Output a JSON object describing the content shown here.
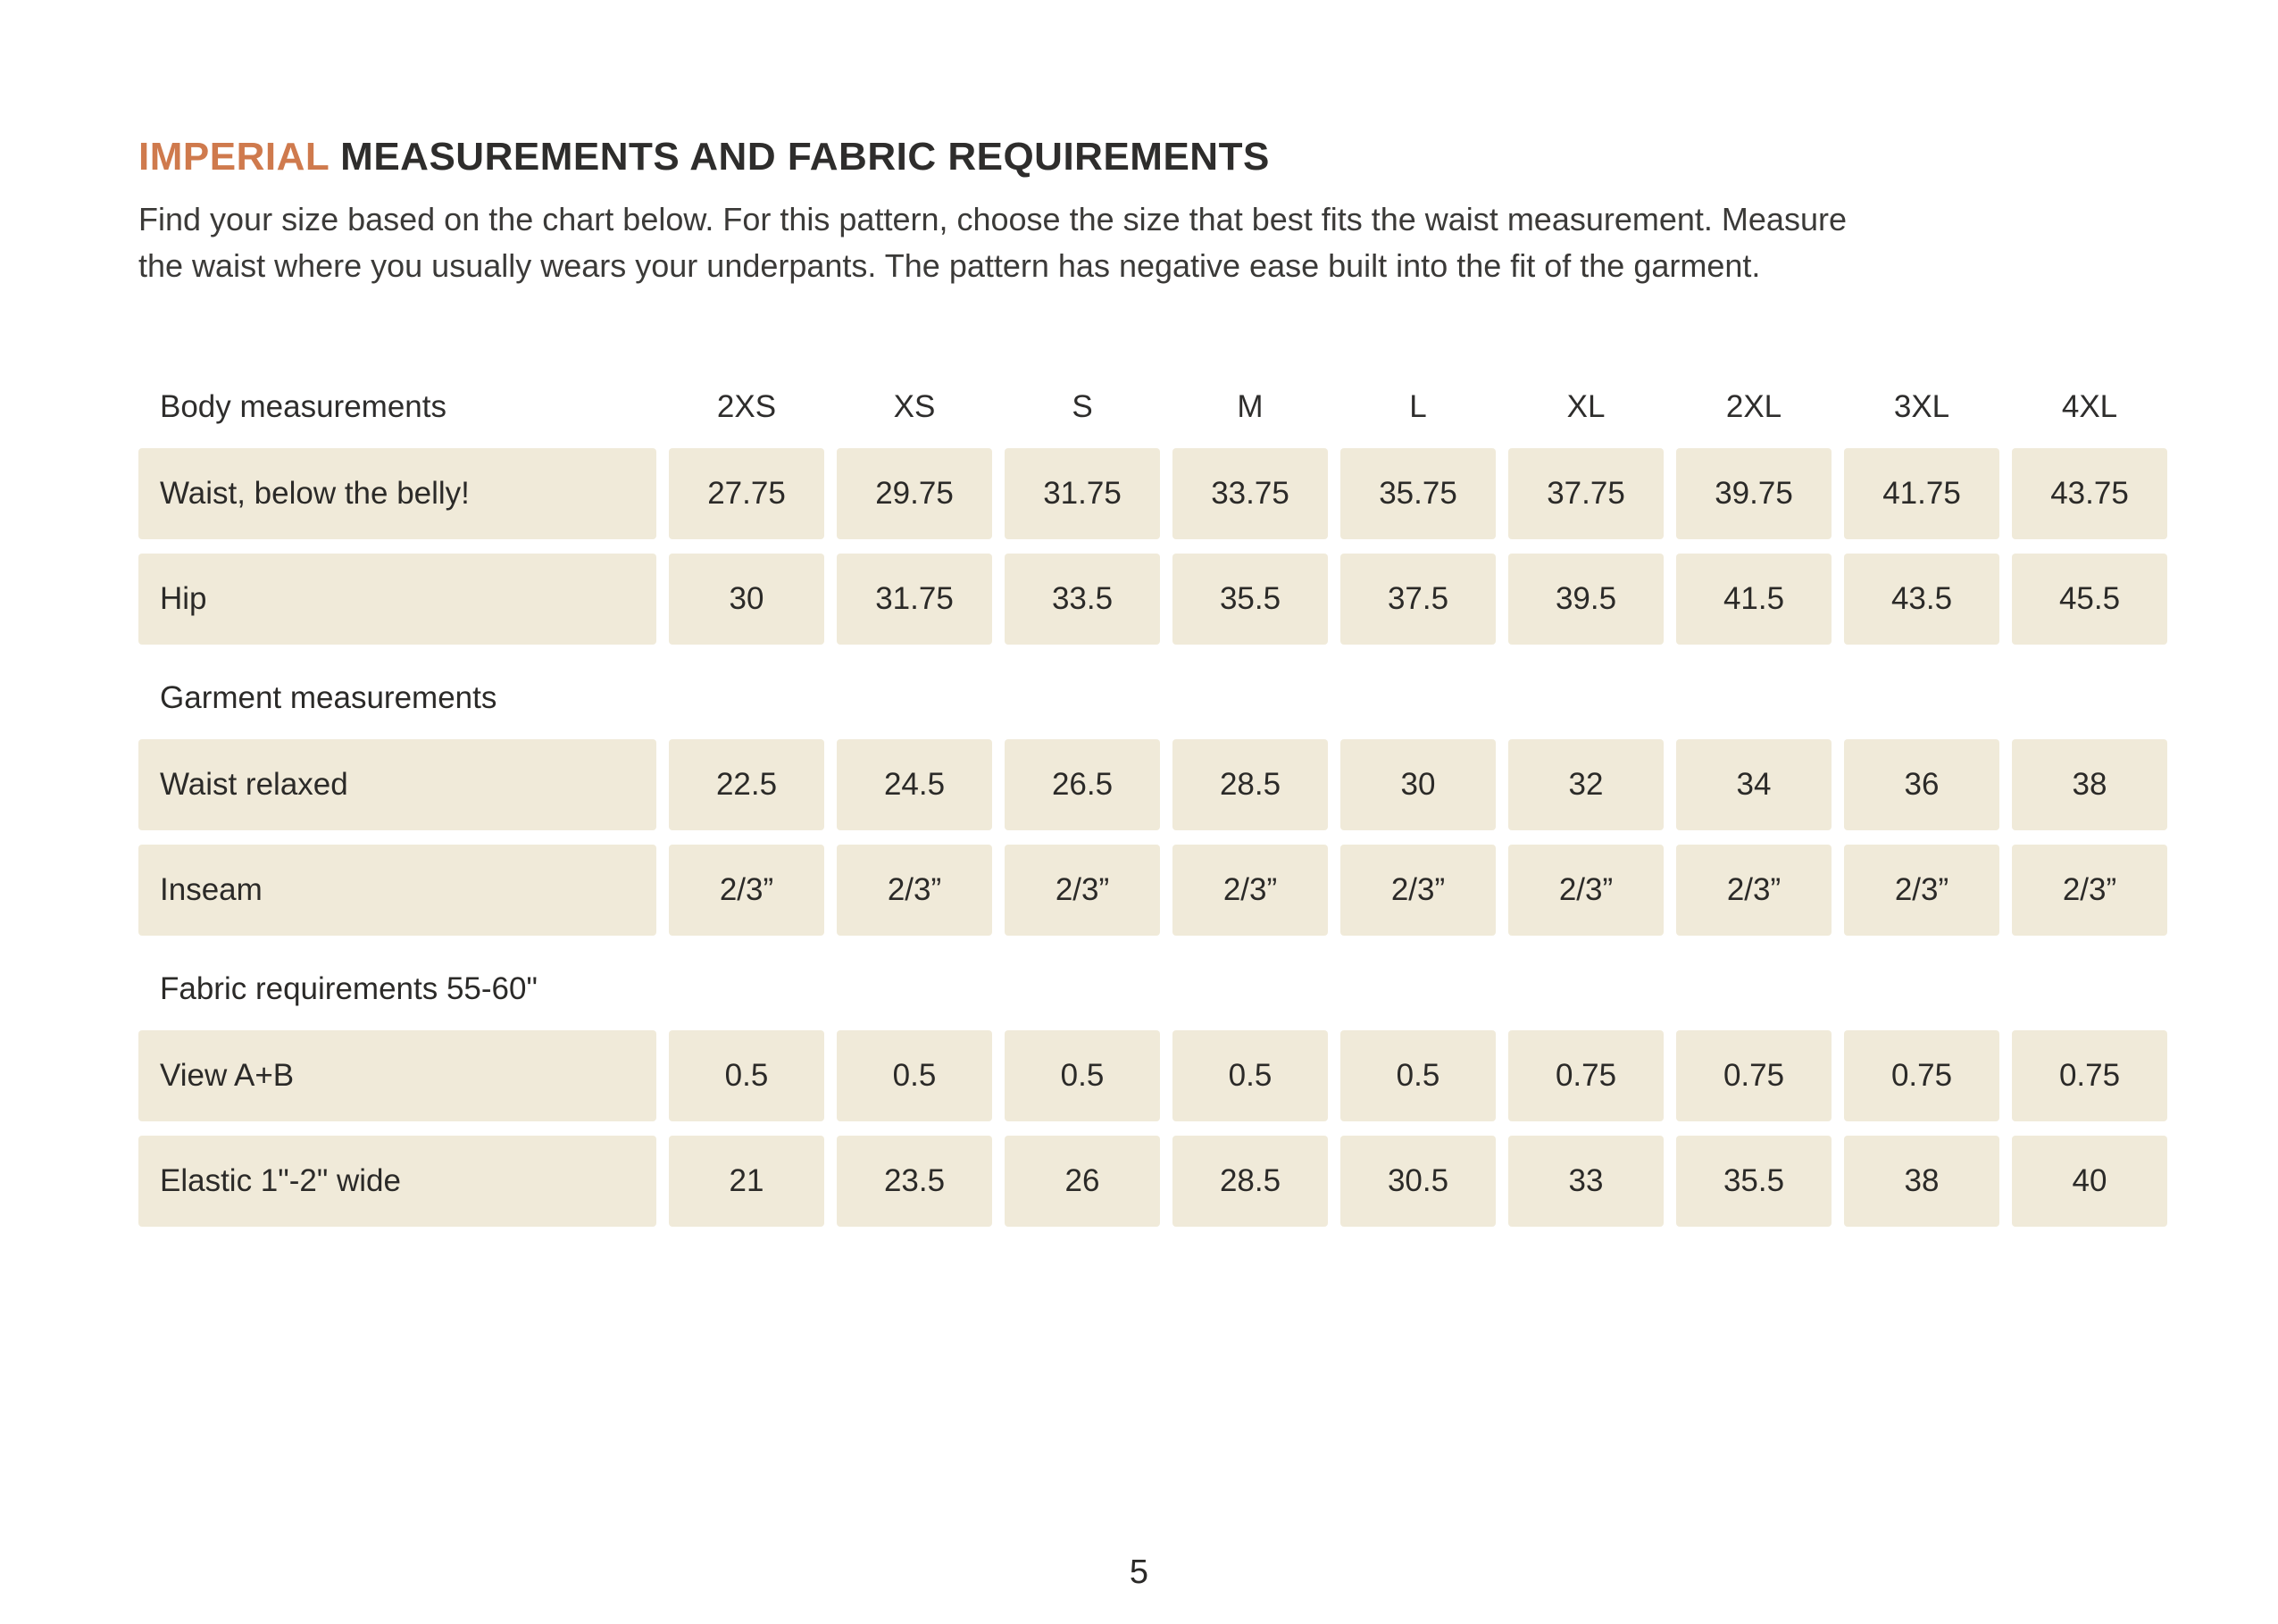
{
  "page": {
    "title": {
      "highlight": "IMPERIAL",
      "rest": "MEASUREMENTS AND FABRIC REQUIREMENTS"
    },
    "intro_lines": [
      "Find your size based on the chart below. For this pattern, choose the size that best fits the waist measurement. Measure",
      "the waist where you usually wears your underpants. The pattern has negative ease built into the fit of the garment."
    ],
    "page_number": "5"
  },
  "colors": {
    "accent_orange": "#cf7a4d",
    "cell_beige": "#f0ead9",
    "text_dark": "#2e2d2c"
  },
  "size_table": {
    "label_header": "Body measurements",
    "sizes": [
      "2XS",
      "XS",
      "S",
      "M",
      "L",
      "XL",
      "2XL",
      "3XL",
      "4XL"
    ],
    "sections": [
      {
        "title": null,
        "rows": [
          {
            "label": "Waist, below the belly!",
            "values": [
              "27.75",
              "29.75",
              "31.75",
              "33.75",
              "35.75",
              "37.75",
              "39.75",
              "41.75",
              "43.75"
            ]
          },
          {
            "label": "Hip",
            "values": [
              "30",
              "31.75",
              "33.5",
              "35.5",
              "37.5",
              "39.5",
              "41.5",
              "43.5",
              "45.5"
            ]
          }
        ]
      },
      {
        "title": "Garment measurements",
        "rows": [
          {
            "label": "Waist relaxed",
            "values": [
              "22.5",
              "24.5",
              "26.5",
              "28.5",
              "30",
              "32",
              "34",
              "36",
              "38"
            ]
          },
          {
            "label": "Inseam",
            "values": [
              "2/3”",
              "2/3”",
              "2/3”",
              "2/3”",
              "2/3”",
              "2/3”",
              "2/3”",
              "2/3”",
              "2/3”"
            ]
          }
        ]
      },
      {
        "title": "Fabric requirements 55-60\"",
        "rows": [
          {
            "label": "View A+B",
            "values": [
              "0.5",
              "0.5",
              "0.5",
              "0.5",
              "0.5",
              "0.75",
              "0.75",
              "0.75",
              "0.75"
            ]
          },
          {
            "label": "Elastic 1\"-2\" wide",
            "values": [
              "21",
              "23.5",
              "26",
              "28.5",
              "30.5",
              "33",
              "35.5",
              "38",
              "40"
            ]
          }
        ]
      }
    ]
  }
}
